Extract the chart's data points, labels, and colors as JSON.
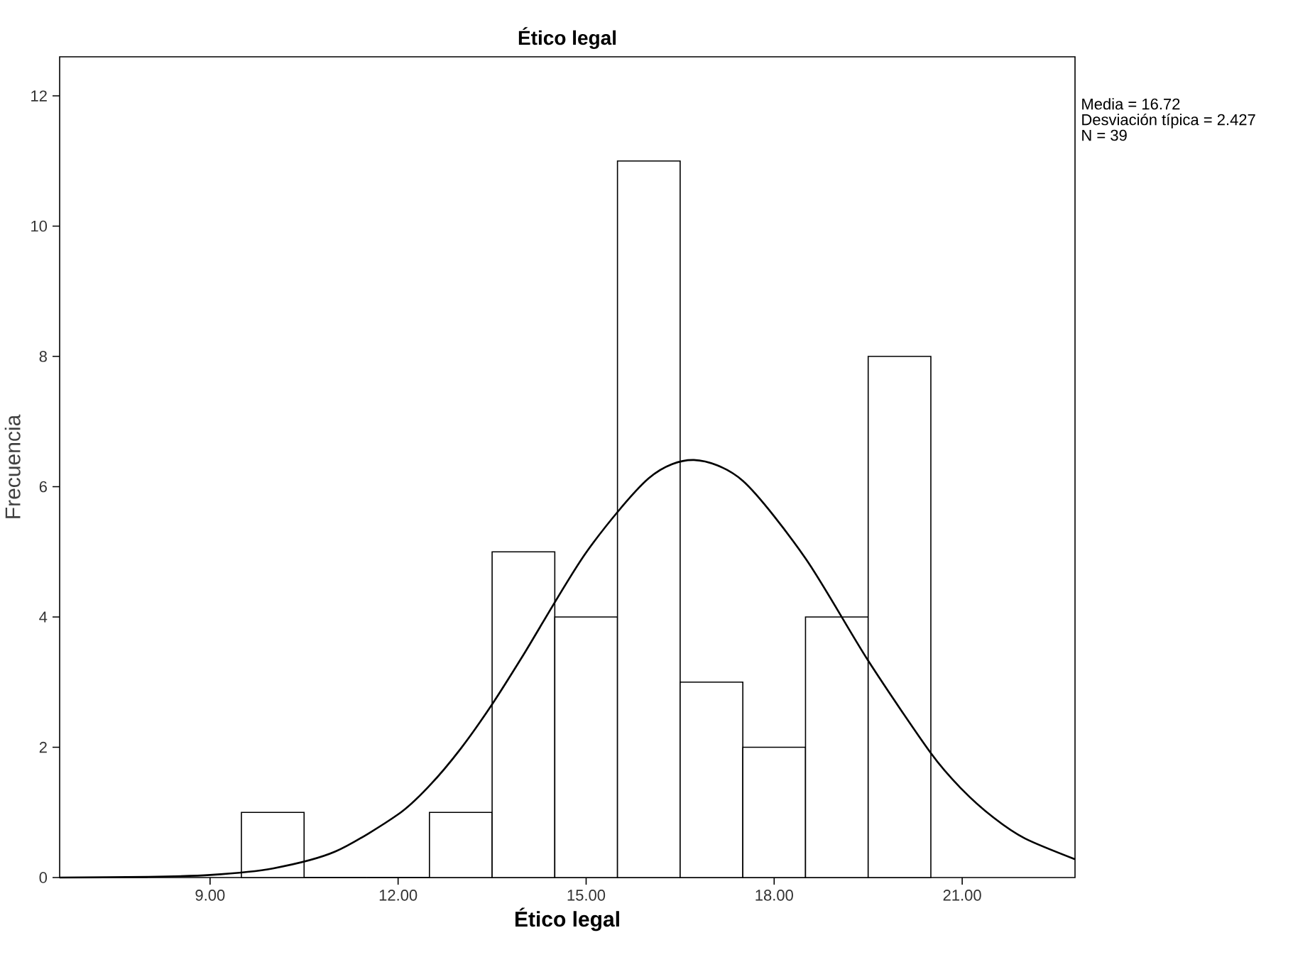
{
  "chart_data": {
    "type": "histogram",
    "title": "Ético legal",
    "xlabel": "Ético legal",
    "ylabel": "Frecuencia",
    "series": [
      {
        "bins": [
          9.5,
          10.5,
          11.5,
          12.5,
          13.5,
          14.5,
          15.5,
          16.5,
          17.5,
          18.5,
          19.5,
          20.5
        ],
        "values": [
          1,
          0,
          0,
          1,
          5,
          4,
          11,
          3,
          2,
          4,
          8
        ],
        "color": "#ffffff"
      },
      {
        "type": "line",
        "x": [
          6.6,
          8,
          9,
          10,
          11,
          12,
          12.5,
          13,
          13.5,
          14,
          15,
          16,
          16.72,
          17.5,
          18.5,
          19.5,
          20.5,
          21,
          21.5,
          22,
          22.8
        ],
        "values": [
          0.0,
          0.01,
          0.04,
          0.14,
          0.4,
          0.97,
          1.41,
          1.98,
          2.66,
          3.42,
          4.99,
          6.13,
          6.41,
          6.09,
          4.9,
          3.33,
          1.91,
          1.35,
          0.92,
          0.6,
          0.28
        ],
        "color": "#000000"
      }
    ],
    "xlim": [
      6.6,
      22.8
    ],
    "ylim": [
      0,
      12.6
    ],
    "xticks": [
      {
        "value": 9,
        "label": "9.00"
      },
      {
        "value": 12,
        "label": "12.00"
      },
      {
        "value": 15,
        "label": "15.00"
      },
      {
        "value": 18,
        "label": "18.00"
      },
      {
        "value": 21,
        "label": "21.00"
      }
    ],
    "yticks": [
      0,
      2,
      4,
      6,
      8,
      10,
      12
    ],
    "annotations": [
      "Media = 16.72",
      "Desviación típica = 2.427",
      "N = 39"
    ]
  }
}
